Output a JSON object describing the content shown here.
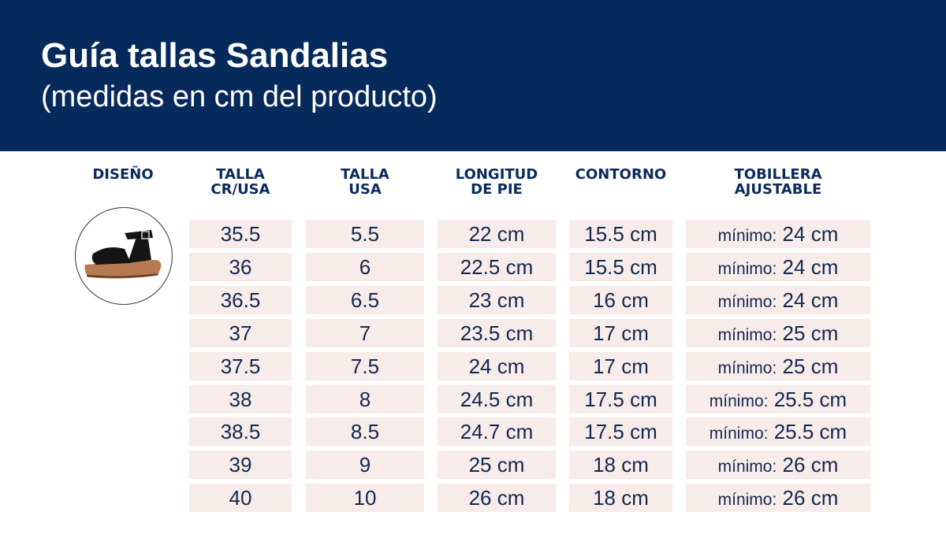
{
  "header": {
    "title": "Guía tallas Sandalias",
    "subtitle": "(medidas en cm del producto)"
  },
  "columns": [
    "DISEÑO",
    "TALLA CR/USA",
    "TALLA USA",
    "LONGITUD DE PIE",
    "CONTORNO",
    "TOBILLERA AJUSTABLE"
  ],
  "header_lines": [
    [
      "DISEÑO"
    ],
    [
      "TALLA",
      "CR/USA"
    ],
    [
      "TALLA",
      "USA"
    ],
    [
      "LONGITUD",
      "DE PIE"
    ],
    [
      "CONTORNO"
    ],
    [
      "TOBILLERA",
      "AJUSTABLE"
    ]
  ],
  "min_prefix": "mínimo:",
  "rows": [
    [
      "35.5",
      "5.5",
      "22 cm",
      "15.5 cm",
      "24 cm"
    ],
    [
      "36",
      "6",
      "22.5 cm",
      "15.5 cm",
      "24 cm"
    ],
    [
      "36.5",
      "6.5",
      "23 cm",
      "16 cm",
      "24 cm"
    ],
    [
      "37",
      "7",
      "23.5 cm",
      "17 cm",
      "25 cm"
    ],
    [
      "37.5",
      "7.5",
      "24 cm",
      "17 cm",
      "25 cm"
    ],
    [
      "38",
      "8",
      "24.5 cm",
      "17.5 cm",
      "25.5 cm"
    ],
    [
      "38.5",
      "8.5",
      "24.7 cm",
      "17.5 cm",
      "25.5 cm"
    ],
    [
      "39",
      "9",
      "25 cm",
      "18 cm",
      "26 cm"
    ],
    [
      "40",
      "10",
      "26 cm",
      "18 cm",
      "26 cm"
    ]
  ]
}
